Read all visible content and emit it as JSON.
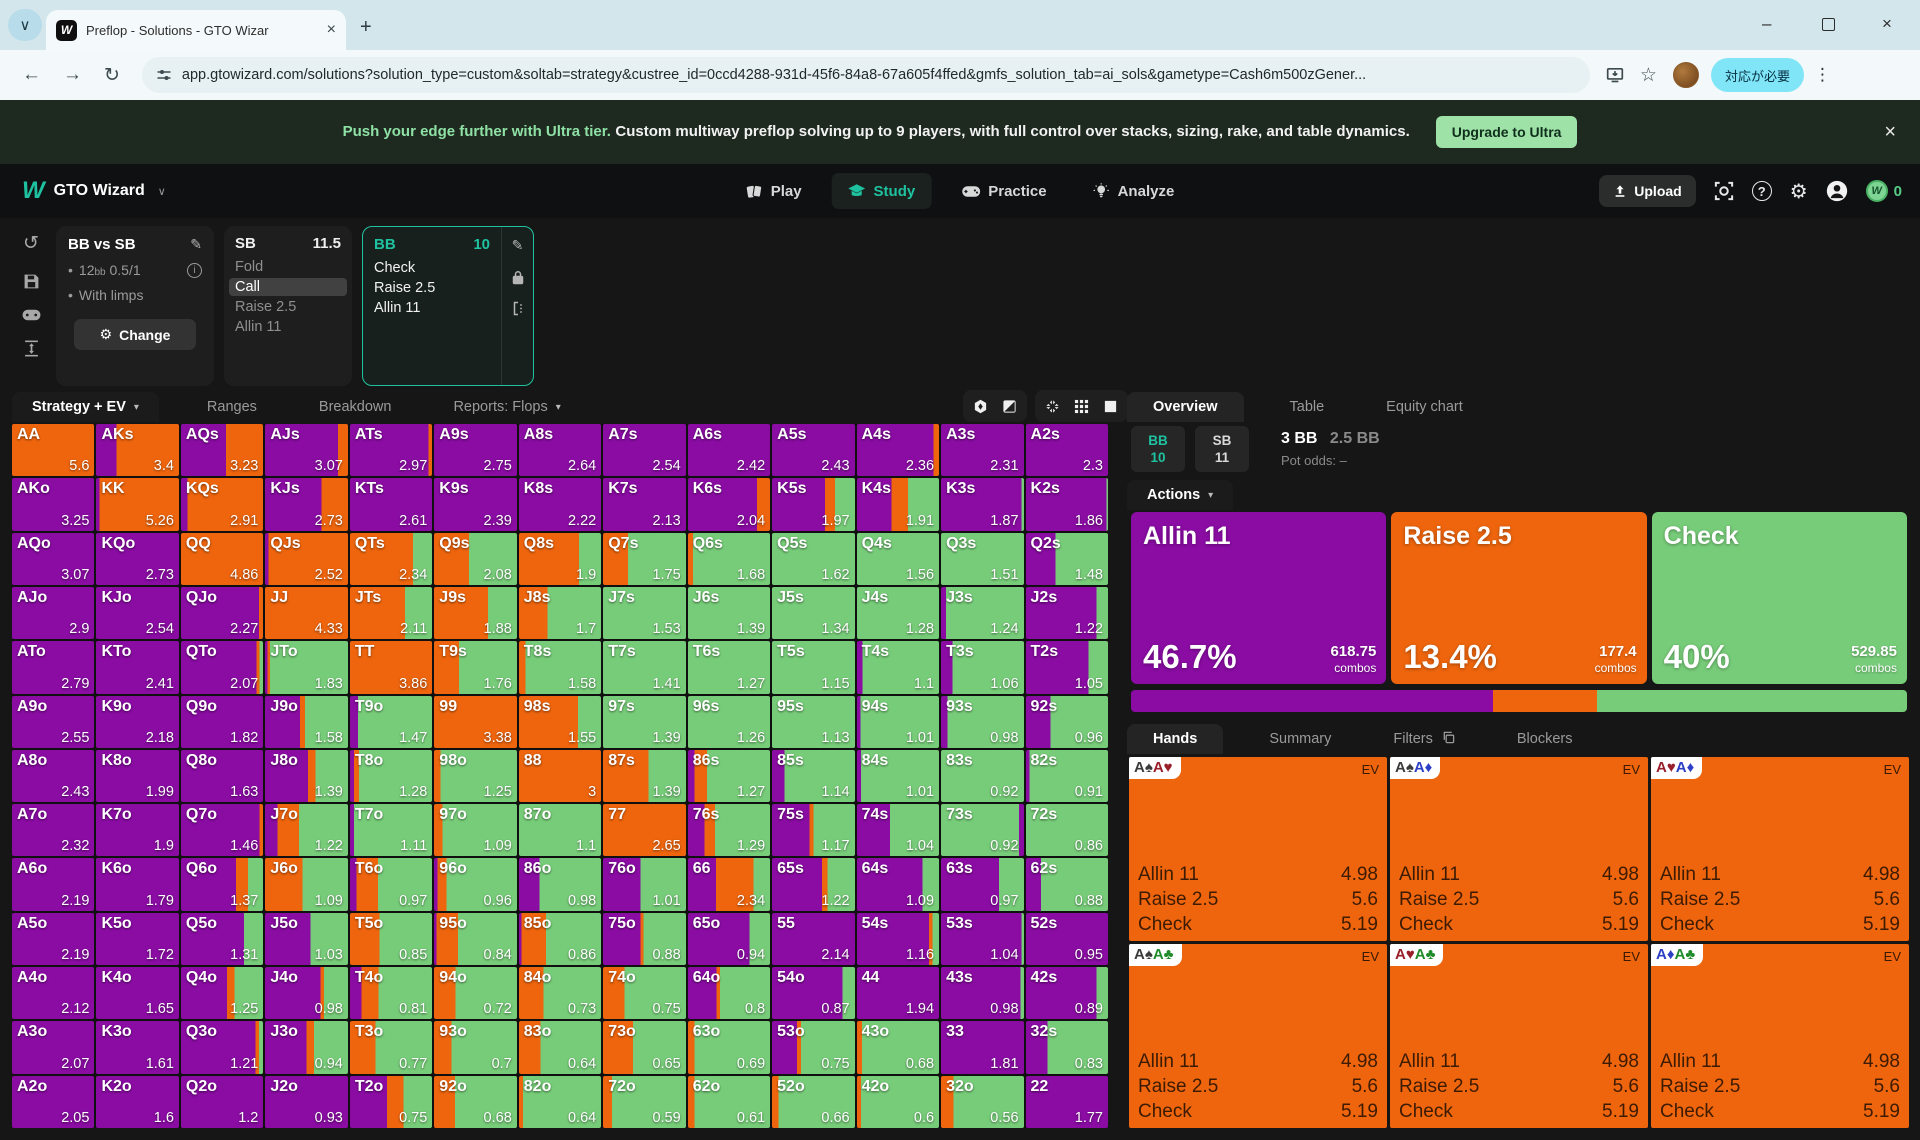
{
  "browser": {
    "tab_title": "Preflop - Solutions - GTO Wizar",
    "url": "app.gtowizard.com/solutions?solution_type=custom&soltab=strategy&custree_id=0ccd4288-931d-45f6-84a8-67a605f4ffed&gmfs_solution_tab=ai_sols&gametype=Cash6m500zGener...",
    "alert_button": "対応が必要"
  },
  "banner": {
    "highlight": "Push your edge further with Ultra tier.",
    "text": "Custom multiway preflop solving up to 9 players, with full control over stacks, sizing, rake, and table dynamics.",
    "cta": "Upgrade to Ultra"
  },
  "nav": {
    "brand": "GTO Wizard",
    "items": [
      {
        "label": "Play",
        "icon": "cards-icon",
        "active": false
      },
      {
        "label": "Study",
        "icon": "study-icon",
        "active": true
      },
      {
        "label": "Practice",
        "icon": "gamepad-icon",
        "active": false
      },
      {
        "label": "Analyze",
        "icon": "bulb-icon",
        "active": false
      }
    ],
    "upload_label": "Upload",
    "coin_count": "0"
  },
  "solution": {
    "title": "BB vs SB",
    "stack_num": "12",
    "stack_sub": "bb",
    "stakes": "0.5/1",
    "limps": "With limps",
    "change_label": "Change",
    "sb": {
      "pos": "SB",
      "stack": "11.5",
      "actions": [
        {
          "label": "Fold",
          "state": "dim"
        },
        {
          "label": "Call",
          "state": "selected"
        },
        {
          "label": "Raise 2.5",
          "state": "dim"
        },
        {
          "label": "Allin 11",
          "state": "dim"
        }
      ]
    },
    "bb": {
      "pos": "BB",
      "stack": "10",
      "actions": [
        {
          "label": "Check",
          "state": "lit"
        },
        {
          "label": "Raise 2.5",
          "state": "lit"
        },
        {
          "label": "Allin 11",
          "state": "lit"
        }
      ]
    }
  },
  "strategy_tabs": [
    {
      "label": "Strategy + EV",
      "active": true,
      "caret": true
    },
    {
      "label": "Ranges",
      "active": false,
      "caret": false
    },
    {
      "label": "Breakdown",
      "active": false,
      "caret": false
    },
    {
      "label": "Reports: Flops",
      "active": false,
      "caret": true
    }
  ],
  "palette": {
    "p": "#8a0ca3",
    "o": "#ee650d",
    "g": "#77cc79",
    "accent": "#1fc2a0"
  },
  "grid": {
    "cells": [
      [
        "AA",
        "5.6",
        "o100"
      ],
      [
        "AKs",
        "3.4",
        "p25 o75"
      ],
      [
        "AQs",
        "3.23",
        "p55 o45"
      ],
      [
        "AJs",
        "3.07",
        "p88 o12"
      ],
      [
        "ATs",
        "2.97",
        "p96 o4"
      ],
      [
        "A9s",
        "2.75",
        "p100"
      ],
      [
        "A8s",
        "2.64",
        "p100"
      ],
      [
        "A7s",
        "2.54",
        "p100"
      ],
      [
        "A6s",
        "2.42",
        "p100"
      ],
      [
        "A5s",
        "2.43",
        "p100"
      ],
      [
        "A4s",
        "2.36",
        "p93 o7"
      ],
      [
        "A3s",
        "2.31",
        "p100"
      ],
      [
        "A2s",
        "2.3",
        "p100"
      ],
      [
        "AKo",
        "3.25",
        "p100"
      ],
      [
        "KK",
        "5.26",
        "p4 o96"
      ],
      [
        "KQs",
        "2.91",
        "p8 o92"
      ],
      [
        "KJs",
        "2.73",
        "p68 o32"
      ],
      [
        "KTs",
        "2.61",
        "p100"
      ],
      [
        "K9s",
        "2.39",
        "p100"
      ],
      [
        "K8s",
        "2.22",
        "p100"
      ],
      [
        "K7s",
        "2.13",
        "p100"
      ],
      [
        "K6s",
        "2.04",
        "p84 o16"
      ],
      [
        "K5s",
        "1.97",
        "p64 o12 g24"
      ],
      [
        "K4s",
        "1.91",
        "p42 o20 g38"
      ],
      [
        "K3s",
        "1.87",
        "p97 g3"
      ],
      [
        "K2s",
        "1.86",
        "p98 g2"
      ],
      [
        "AQo",
        "3.07",
        "p100"
      ],
      [
        "KQo",
        "2.73",
        "p100"
      ],
      [
        "QQ",
        "4.86",
        "o100"
      ],
      [
        "QJs",
        "2.52",
        "p4 o96"
      ],
      [
        "QTs",
        "2.34",
        "o77 g23"
      ],
      [
        "Q9s",
        "2.08",
        "o42 g58"
      ],
      [
        "Q8s",
        "1.9",
        "o73 g27"
      ],
      [
        "Q7s",
        "1.75",
        "o30 g70"
      ],
      [
        "Q6s",
        "1.68",
        "o6 g94"
      ],
      [
        "Q5s",
        "1.62",
        "g100"
      ],
      [
        "Q4s",
        "1.56",
        "g100"
      ],
      [
        "Q3s",
        "1.51",
        "g100"
      ],
      [
        "Q2s",
        "1.48",
        "p36 g64"
      ],
      [
        "AJo",
        "2.9",
        "p100"
      ],
      [
        "KJo",
        "2.54",
        "p100"
      ],
      [
        "QJo",
        "2.27",
        "p95 o5"
      ],
      [
        "JJ",
        "4.33",
        "o100"
      ],
      [
        "JTs",
        "2.11",
        "o67 g33"
      ],
      [
        "J9s",
        "1.88",
        "o65 g35"
      ],
      [
        "J8s",
        "1.7",
        "o35 g65"
      ],
      [
        "J7s",
        "1.53",
        "g100"
      ],
      [
        "J6s",
        "1.39",
        "g100"
      ],
      [
        "J5s",
        "1.34",
        "g100"
      ],
      [
        "J4s",
        "1.28",
        "g100"
      ],
      [
        "J3s",
        "1.24",
        "p6 g94"
      ],
      [
        "J2s",
        "1.22",
        "p86 g14"
      ],
      [
        "ATo",
        "2.79",
        "p100"
      ],
      [
        "KTo",
        "2.41",
        "p100"
      ],
      [
        "QTo",
        "2.07",
        "p92 o4 g4"
      ],
      [
        "JTo",
        "1.83",
        "p3 o3 g94"
      ],
      [
        "TT",
        "3.86",
        "o100"
      ],
      [
        "T9s",
        "1.76",
        "o30 g70"
      ],
      [
        "T8s",
        "1.58",
        "o8 g92"
      ],
      [
        "T7s",
        "1.41",
        "g100"
      ],
      [
        "T6s",
        "1.27",
        "g100"
      ],
      [
        "T5s",
        "1.15",
        "g100"
      ],
      [
        "T4s",
        "1.1",
        "p7 g93"
      ],
      [
        "T3s",
        "1.06",
        "p14 g86"
      ],
      [
        "T2s",
        "1.05",
        "p76 g24"
      ],
      [
        "A9o",
        "2.55",
        "p100"
      ],
      [
        "K9o",
        "2.18",
        "p100"
      ],
      [
        "Q9o",
        "1.82",
        "p100"
      ],
      [
        "J9o",
        "1.58",
        "p42 o6 g52"
      ],
      [
        "T9o",
        "1.47",
        "p10 g90"
      ],
      [
        "99",
        "3.38",
        "o100"
      ],
      [
        "98s",
        "1.55",
        "o72 g28"
      ],
      [
        "97s",
        "1.39",
        "g100"
      ],
      [
        "96s",
        "1.26",
        "g100"
      ],
      [
        "95s",
        "1.13",
        "g100"
      ],
      [
        "94s",
        "1.01",
        "p4 g96"
      ],
      [
        "93s",
        "0.98",
        "p8 g92"
      ],
      [
        "92s",
        "0.96",
        "p30 g70"
      ],
      [
        "A8o",
        "2.43",
        "p100"
      ],
      [
        "K8o",
        "1.99",
        "p100"
      ],
      [
        "Q8o",
        "1.63",
        "p100"
      ],
      [
        "J8o",
        "1.39",
        "p52 o9 g39"
      ],
      [
        "T8o",
        "1.28",
        "p5 o6 g89"
      ],
      [
        "98o",
        "1.25",
        "o8 g92"
      ],
      [
        "88",
        "3",
        "o100"
      ],
      [
        "87s",
        "1.39",
        "o55 g45"
      ],
      [
        "86s",
        "1.27",
        "p8 o15 g77"
      ],
      [
        "85s",
        "1.14",
        "p15 g85"
      ],
      [
        "84s",
        "1.01",
        "p5 g95"
      ],
      [
        "83s",
        "0.92",
        "g100"
      ],
      [
        "82s",
        "0.91",
        "p4 g96"
      ],
      [
        "A7o",
        "2.32",
        "p100"
      ],
      [
        "K7o",
        "1.9",
        "p100"
      ],
      [
        "Q7o",
        "1.46",
        "p96 o4"
      ],
      [
        "J7o",
        "1.22",
        "p15 o26 g59"
      ],
      [
        "T7o",
        "1.11",
        "p5 g95"
      ],
      [
        "97o",
        "1.09",
        "o10 g90"
      ],
      [
        "87o",
        "1.1",
        "g100"
      ],
      [
        "77",
        "2.65",
        "o100"
      ],
      [
        "76s",
        "1.29",
        "p20 o13 g67"
      ],
      [
        "75s",
        "1.17",
        "p45 o5 g50"
      ],
      [
        "74s",
        "1.04",
        "p40 g60"
      ],
      [
        "73s",
        "0.92",
        "g94 p6"
      ],
      [
        "72s",
        "0.86",
        "g100"
      ],
      [
        "A6o",
        "2.19",
        "p100"
      ],
      [
        "K6o",
        "1.79",
        "p100"
      ],
      [
        "Q6o",
        "1.37",
        "p67 o15 g18"
      ],
      [
        "J6o",
        "1.09",
        "o45 g55"
      ],
      [
        "T6o",
        "0.97",
        "p8 o26 g66"
      ],
      [
        "96o",
        "0.96",
        "p4 o11 g85"
      ],
      [
        "86o",
        "0.98",
        "p25 g75"
      ],
      [
        "76o",
        "1.01",
        "p45 g55"
      ],
      [
        "66",
        "2.34",
        "p34 o46 g20"
      ],
      [
        "65s",
        "1.22",
        "p60 o7 g33"
      ],
      [
        "64s",
        "1.09",
        "p80 g20"
      ],
      [
        "63s",
        "0.97",
        "p70 g30"
      ],
      [
        "62s",
        "0.88",
        "p18 g82"
      ],
      [
        "A5o",
        "2.19",
        "p100"
      ],
      [
        "K5o",
        "1.72",
        "p100"
      ],
      [
        "Q5o",
        "1.31",
        "p77 g23"
      ],
      [
        "J5o",
        "1.03",
        "p55 g45"
      ],
      [
        "T5o",
        "0.85",
        "o36 g64"
      ],
      [
        "95o",
        "0.84",
        "p3 o26 g71"
      ],
      [
        "85o",
        "0.86",
        "p3 o30 g67"
      ],
      [
        "75o",
        "0.88",
        "p45 o4 g51"
      ],
      [
        "65o",
        "0.94",
        "p75 g25"
      ],
      [
        "55",
        "2.14",
        "p100"
      ],
      [
        "54s",
        "1.16",
        "p88 o4 g8"
      ],
      [
        "53s",
        "1.04",
        "p97 g3"
      ],
      [
        "52s",
        "0.95",
        "p100"
      ],
      [
        "A4o",
        "2.12",
        "p100"
      ],
      [
        "K4o",
        "1.65",
        "p100"
      ],
      [
        "Q4o",
        "1.25",
        "p56 o9 g35"
      ],
      [
        "J4o",
        "0.98",
        "p67 o4 g29"
      ],
      [
        "T4o",
        "0.81",
        "p14 o21 g65"
      ],
      [
        "94o",
        "0.72",
        "o26 g74"
      ],
      [
        "84o",
        "0.73",
        "o30 g70"
      ],
      [
        "74o",
        "0.75",
        "o26 g74"
      ],
      [
        "64o",
        "0.8",
        "p35 o4 g61"
      ],
      [
        "54o",
        "0.87",
        "p85 g15"
      ],
      [
        "44",
        "1.94",
        "p100"
      ],
      [
        "43s",
        "0.98",
        "p96 g4"
      ],
      [
        "42s",
        "0.89",
        "p86 g14"
      ],
      [
        "A3o",
        "2.07",
        "p100"
      ],
      [
        "K3o",
        "1.61",
        "p100"
      ],
      [
        "Q3o",
        "1.21",
        "p91 o4 g5"
      ],
      [
        "J3o",
        "0.94",
        "p50 o9 g41"
      ],
      [
        "T3o",
        "0.77",
        "o31 g69"
      ],
      [
        "93o",
        "0.7",
        "o21 g79"
      ],
      [
        "83o",
        "0.64",
        "o26 g74"
      ],
      [
        "73o",
        "0.65",
        "o36 g64"
      ],
      [
        "63o",
        "0.69",
        "o8 g92"
      ],
      [
        "53o",
        "0.75",
        "p30 o5 g65"
      ],
      [
        "43o",
        "0.68",
        "o6 g94"
      ],
      [
        "33",
        "1.81",
        "p100"
      ],
      [
        "32s",
        "0.83",
        "p26 g74"
      ],
      [
        "A2o",
        "2.05",
        "p100"
      ],
      [
        "K2o",
        "1.6",
        "p100"
      ],
      [
        "Q2o",
        "1.2",
        "p100"
      ],
      [
        "J2o",
        "0.93",
        "p100"
      ],
      [
        "T2o",
        "0.75",
        "p45 o20 g35"
      ],
      [
        "92o",
        "0.68",
        "o25 g75"
      ],
      [
        "82o",
        "0.64",
        "o5 g95"
      ],
      [
        "72o",
        "0.59",
        "o11 g89"
      ],
      [
        "62o",
        "0.61",
        "o8 g92"
      ],
      [
        "52o",
        "0.66",
        "o8 g92"
      ],
      [
        "42o",
        "0.6",
        "o5 g95"
      ],
      [
        "32o",
        "0.56",
        "o15 g85"
      ],
      [
        "22",
        "1.77",
        "p100"
      ]
    ]
  },
  "overview": {
    "tabs": [
      {
        "label": "Overview",
        "active": true
      },
      {
        "label": "Table",
        "active": false
      },
      {
        "label": "Equity chart",
        "active": false
      }
    ],
    "players": [
      {
        "pos": "BB",
        "stack": "10",
        "active": true
      },
      {
        "pos": "SB",
        "stack": "11",
        "active": false
      }
    ],
    "pot_main": "3 BB",
    "pot_sub": "2.5 BB",
    "pot_odds_label": "Pot odds:",
    "pot_odds_value": "–",
    "actions_tab": "Actions",
    "actions": [
      {
        "label": "Allin 11",
        "pct": "46.7%",
        "combos": "618.75",
        "combos_label": "combos",
        "color": "p"
      },
      {
        "label": "Raise 2.5",
        "pct": "13.4%",
        "combos": "177.4",
        "combos_label": "combos",
        "color": "o"
      },
      {
        "label": "Check",
        "pct": "40%",
        "combos": "529.85",
        "combos_label": "combos",
        "color": "g"
      }
    ],
    "bar": [
      {
        "color": "p",
        "pct": 46.7
      },
      {
        "color": "o",
        "pct": 13.4
      },
      {
        "color": "g",
        "pct": 39.9
      }
    ]
  },
  "hands_panel": {
    "tabs": [
      {
        "label": "Hands",
        "active": true,
        "icon": null
      },
      {
        "label": "Summary",
        "active": false,
        "icon": null
      },
      {
        "label": "Filters",
        "active": false,
        "icon": "copy-icon"
      },
      {
        "label": "Blockers",
        "active": false,
        "icon": null
      }
    ],
    "ev_label": "EV",
    "card_bg": "#ee650d",
    "suit_colors": {
      "s": "#3b3b3b",
      "h": "#99202b",
      "d": "#2d3fc4",
      "c": "#1f8b2a"
    },
    "cards": [
      {
        "combo": [
          [
            "A",
            "s"
          ],
          [
            "A",
            "h"
          ]
        ]
      },
      {
        "combo": [
          [
            "A",
            "s"
          ],
          [
            "A",
            "d"
          ]
        ]
      },
      {
        "combo": [
          [
            "A",
            "h"
          ],
          [
            "A",
            "d"
          ]
        ]
      },
      {
        "combo": [
          [
            "A",
            "s"
          ],
          [
            "A",
            "c"
          ]
        ]
      },
      {
        "combo": [
          [
            "A",
            "h"
          ],
          [
            "A",
            "c"
          ]
        ]
      },
      {
        "combo": [
          [
            "A",
            "d"
          ],
          [
            "A",
            "c"
          ]
        ]
      }
    ],
    "rows": [
      [
        "Allin 11",
        "4.98"
      ],
      [
        "Raise 2.5",
        "5.6"
      ],
      [
        "Check",
        "5.19"
      ]
    ]
  }
}
